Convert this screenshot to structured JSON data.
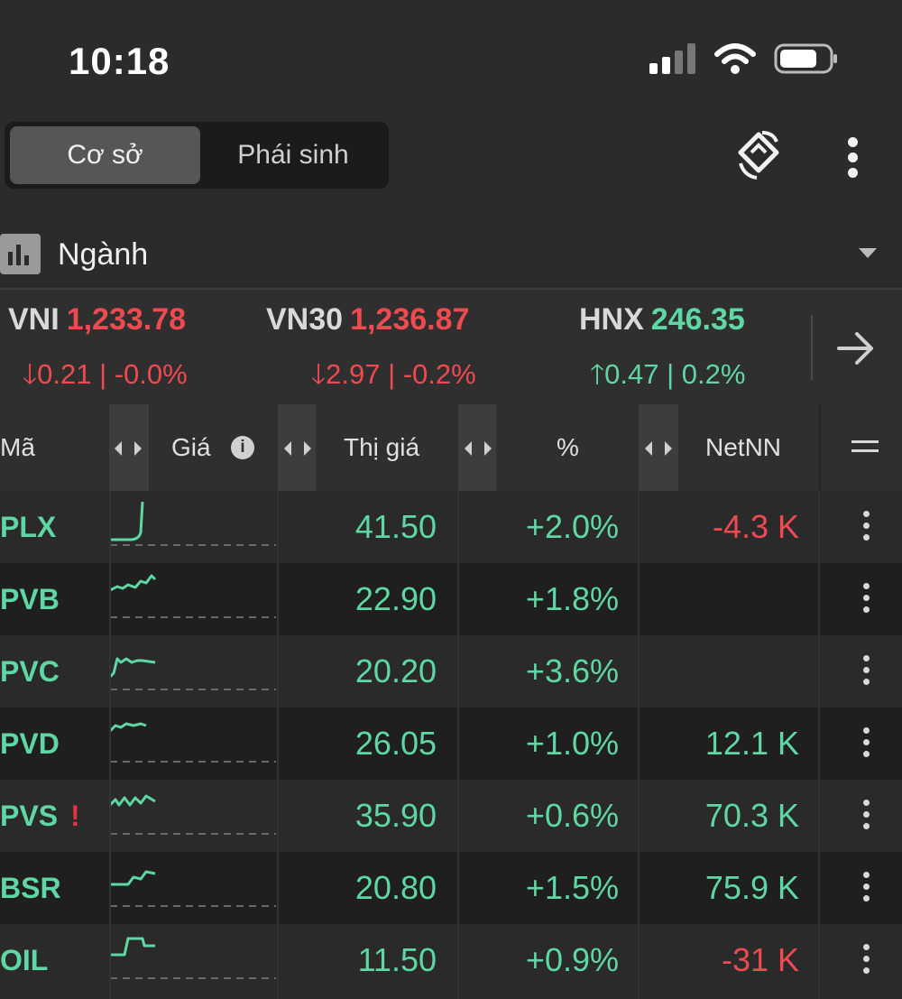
{
  "status_bar": {
    "time": "10:18",
    "battery_icon": "battery-icon",
    "wifi_icon": "wifi-icon",
    "signal_icon": "signal-icon"
  },
  "tabs": {
    "items": [
      "Cơ sở",
      "Phái sinh"
    ],
    "active": "Cơ sở"
  },
  "header_icons": [
    "rotate-icon",
    "more-vertical-icon"
  ],
  "sector": {
    "label": "Ngành",
    "icon": "bar-chart-icon"
  },
  "indices": [
    {
      "name": "VNI",
      "value": "1,233.78",
      "change": "0.21 | -0.0%",
      "direction": "down"
    },
    {
      "name": "VN30",
      "value": "1,236.87",
      "change": "2.97 | -0.2%",
      "direction": "down"
    },
    {
      "name": "HNX",
      "value": "246.35",
      "change": "0.47 | 0.2%",
      "direction": "up"
    }
  ],
  "table": {
    "headers": {
      "symbol": "Mã",
      "price_chart": "Giá",
      "price": "Thị giá",
      "percent": "%",
      "netnn": "NetNN"
    },
    "rows": [
      {
        "symbol": "PLX",
        "price": "41.50",
        "percent": "+2.0%",
        "netnn": "-4.3 K",
        "netnn_color": "red",
        "warning": ""
      },
      {
        "symbol": "PVB",
        "price": "22.90",
        "percent": "+1.8%",
        "netnn": "",
        "netnn_color": "green",
        "warning": ""
      },
      {
        "symbol": "PVC",
        "price": "20.20",
        "percent": "+3.6%",
        "netnn": "",
        "netnn_color": "green",
        "warning": ""
      },
      {
        "symbol": "PVD",
        "price": "26.05",
        "percent": "+1.0%",
        "netnn": "12.1 K",
        "netnn_color": "green",
        "warning": ""
      },
      {
        "symbol": "PVS",
        "price": "35.90",
        "percent": "+0.6%",
        "netnn": "70.3 K",
        "netnn_color": "green",
        "warning": "!"
      },
      {
        "symbol": "BSR",
        "price": "20.80",
        "percent": "+1.5%",
        "netnn": "75.9 K",
        "netnn_color": "green",
        "warning": ""
      },
      {
        "symbol": "OIL",
        "price": "11.50",
        "percent": "+0.9%",
        "netnn": "-31 K",
        "netnn_color": "red",
        "warning": ""
      }
    ]
  },
  "colors": {
    "up": "#5fd7a4",
    "down": "#ee4a4f",
    "background": "#2b2b2b"
  }
}
